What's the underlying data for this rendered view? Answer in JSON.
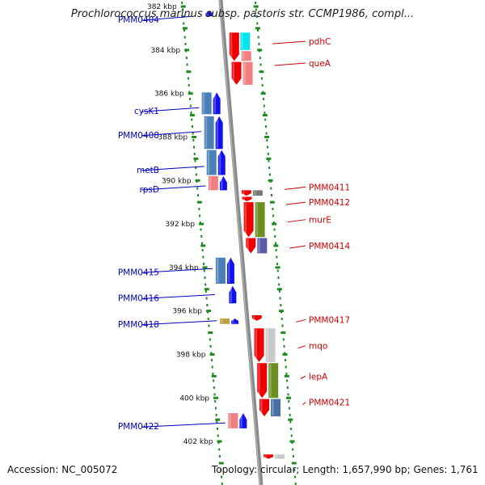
{
  "header": {
    "title": "Prochlorococcus marinus subsp. pastoris str. CCMP1986, compl..."
  },
  "footer": {
    "accession": "Accession: NC_005072",
    "summary": "Topology: circular; Length: 1,657,990 bp; Genes: 1,761"
  },
  "colors": {
    "backbone": "#8a8a8a",
    "tick": "#1f8a1f",
    "forward_label": "#0000bb",
    "reverse_label": "#cc0000"
  },
  "ruler": {
    "ticks": [
      {
        "label": "382 kbp",
        "kbp": 382
      },
      {
        "label": "384 kbp",
        "kbp": 384
      },
      {
        "label": "386 kbp",
        "kbp": 386
      },
      {
        "label": "388 kbp",
        "kbp": 388
      },
      {
        "label": "390 kbp",
        "kbp": 390
      },
      {
        "label": "392 kbp",
        "kbp": 392
      },
      {
        "label": "394 kbp",
        "kbp": 394
      },
      {
        "label": "396 kbp",
        "kbp": 396
      },
      {
        "label": "398 kbp",
        "kbp": 398
      },
      {
        "label": "400 kbp",
        "kbp": 400
      },
      {
        "label": "402 kbp",
        "kbp": 402
      }
    ]
  },
  "left_labels": [
    {
      "text": "PMM0404",
      "kbp": 382.6
    },
    {
      "text": "cysK1",
      "kbp": 386.8
    },
    {
      "text": "PMM0408",
      "kbp": 387.9
    },
    {
      "text": "metB",
      "kbp": 389.5
    },
    {
      "text": "rpsD",
      "kbp": 390.4
    },
    {
      "text": "PMM0415",
      "kbp": 394.2
    },
    {
      "text": "PMM0416",
      "kbp": 395.4
    },
    {
      "text": "PMM0418",
      "kbp": 396.6
    },
    {
      "text": "PMM0422",
      "kbp": 401.3
    }
  ],
  "right_labels": [
    {
      "text": "pdhC",
      "kbp": 383.6
    },
    {
      "text": "queA",
      "kbp": 384.6
    },
    {
      "text": "PMM0411",
      "kbp": 390.3
    },
    {
      "text": "PMM0412",
      "kbp": 391.0
    },
    {
      "text": "murE",
      "kbp": 391.8
    },
    {
      "text": "PMM0414",
      "kbp": 393.0
    },
    {
      "text": "PMM0417",
      "kbp": 396.4
    },
    {
      "text": "mqo",
      "kbp": 397.6
    },
    {
      "text": "lepA",
      "kbp": 399.0
    },
    {
      "text": "PMM0421",
      "kbp": 400.2
    }
  ],
  "genes_forward": [
    {
      "start": 382.2,
      "end": 382.45,
      "col": "outer",
      "color": "#1010ee"
    },
    {
      "start": 385.95,
      "end": 386.95,
      "col": "outer",
      "color": "#1010ee"
    },
    {
      "start": 385.95,
      "end": 386.95,
      "col": "inner",
      "color": "#4a7fb8"
    },
    {
      "start": 387.05,
      "end": 388.55,
      "col": "outer",
      "color": "#1010ee"
    },
    {
      "start": 387.05,
      "end": 388.55,
      "col": "inner",
      "color": "#4a7fb8"
    },
    {
      "start": 388.6,
      "end": 389.75,
      "col": "outer",
      "color": "#1010ee"
    },
    {
      "start": 388.6,
      "end": 389.75,
      "col": "inner",
      "color": "#4a7fb8"
    },
    {
      "start": 389.8,
      "end": 390.45,
      "col": "outer",
      "color": "#1010ee"
    },
    {
      "start": 389.8,
      "end": 390.45,
      "col": "inner",
      "color": "#f08080"
    },
    {
      "start": 393.55,
      "end": 394.75,
      "col": "outer",
      "color": "#1010ee"
    },
    {
      "start": 393.55,
      "end": 394.75,
      "col": "inner",
      "color": "#4a7fb8"
    },
    {
      "start": 394.85,
      "end": 395.65,
      "col": "outer",
      "color": "#1010ee"
    },
    {
      "start": 396.35,
      "end": 396.6,
      "col": "outer",
      "color": "#1010ee"
    },
    {
      "start": 396.35,
      "end": 396.6,
      "col": "inner",
      "color": "#b8a040"
    },
    {
      "start": 400.7,
      "end": 401.4,
      "col": "outer",
      "color": "#1010ee"
    },
    {
      "start": 400.7,
      "end": 401.4,
      "col": "inner",
      "color": "#f08080"
    }
  ],
  "genes_reverse": [
    {
      "start": 383.2,
      "end": 384.5,
      "col": "inner",
      "color": "#ee0000"
    },
    {
      "start": 383.2,
      "end": 384.0,
      "col": "outer",
      "color": "#00e5ee"
    },
    {
      "start": 384.05,
      "end": 384.5,
      "col": "outer",
      "color": "#f08080"
    },
    {
      "start": 384.55,
      "end": 385.6,
      "col": "inner",
      "color": "#ee0000"
    },
    {
      "start": 384.55,
      "end": 385.6,
      "col": "outer",
      "color": "#f08080"
    },
    {
      "start": 390.45,
      "end": 390.7,
      "col": "inner",
      "color": "#ee0000"
    },
    {
      "start": 390.45,
      "end": 390.7,
      "col": "outer",
      "color": "#777777"
    },
    {
      "start": 390.75,
      "end": 390.95,
      "col": "inner",
      "color": "#ee0000"
    },
    {
      "start": 391.0,
      "end": 392.6,
      "col": "inner",
      "color": "#ee0000"
    },
    {
      "start": 391.0,
      "end": 392.6,
      "col": "outer",
      "color": "#6b8e23"
    },
    {
      "start": 392.65,
      "end": 393.35,
      "col": "inner",
      "color": "#ee0000"
    },
    {
      "start": 392.65,
      "end": 393.35,
      "col": "outer",
      "color": "#5a5aaa"
    },
    {
      "start": 396.2,
      "end": 396.45,
      "col": "inner",
      "color": "#ee0000"
    },
    {
      "start": 396.8,
      "end": 398.35,
      "col": "inner",
      "color": "#ee0000"
    },
    {
      "start": 396.8,
      "end": 398.35,
      "col": "outer",
      "color": "#c8c8c8"
    },
    {
      "start": 398.4,
      "end": 400.0,
      "col": "inner",
      "color": "#ee0000"
    },
    {
      "start": 398.4,
      "end": 400.0,
      "col": "outer",
      "color": "#6b8e23"
    },
    {
      "start": 400.05,
      "end": 400.85,
      "col": "inner",
      "color": "#ee0000"
    },
    {
      "start": 400.05,
      "end": 400.85,
      "col": "outer",
      "color": "#4a6fa8"
    },
    {
      "start": 402.6,
      "end": 402.8,
      "col": "inner",
      "color": "#ee0000"
    },
    {
      "start": 402.6,
      "end": 402.8,
      "col": "outer",
      "color": "#c8c8c8"
    }
  ]
}
